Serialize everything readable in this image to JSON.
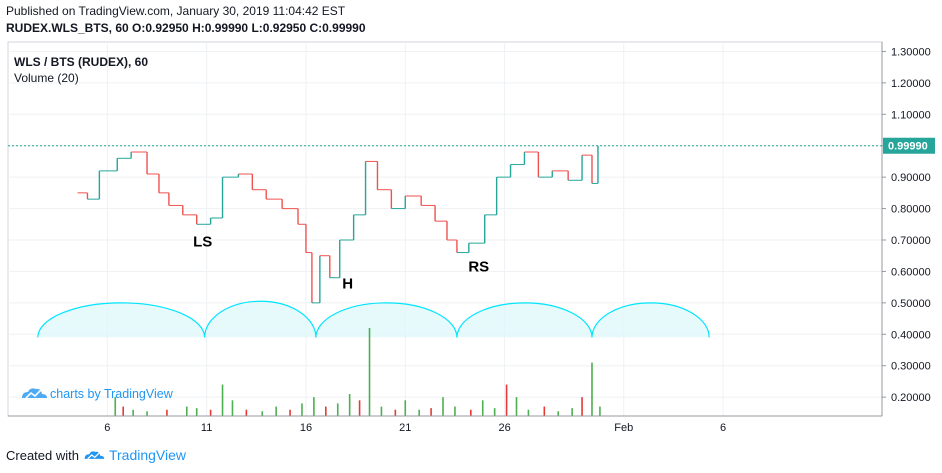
{
  "header": {
    "published": "Published on TradingView.com, January 30, 2019 11:04:42 EST",
    "ohlc": "RUDEX.WLS_BTS, 60 O:0.92950 H:0.99990 L:0.92950 C:0.99990"
  },
  "legend": {
    "symbol": "WLS / BTS (RUDEX), 60",
    "volume": "Volume (20)"
  },
  "watermark": "charts by TradingView",
  "footer": {
    "created": "Created with",
    "brand": "TradingView"
  },
  "colors": {
    "up": "#26a69a",
    "down": "#ef5350",
    "up_volume": "#4caf50",
    "down_volume": "#e53935",
    "last_price": "#26a69a",
    "arc_line": "#00e5ff",
    "arc_fill": "#e0f7fa",
    "grid": "#eef1f4",
    "watermark": "#2196f3"
  },
  "chart_data": {
    "type": "candlestick",
    "title": "WLS / BTS (RUDEX), 60",
    "x_tick_labels": [
      "6",
      "11",
      "16",
      "21",
      "26",
      "Feb",
      "6"
    ],
    "x_tick_days": [
      6,
      11,
      16,
      21,
      26,
      32,
      37
    ],
    "xlim_days": [
      1.0,
      45.0
    ],
    "ylim": [
      0.14,
      1.33
    ],
    "y_tick_labels": [
      "0.20000",
      "0.30000",
      "0.40000",
      "0.50000",
      "0.60000",
      "0.70000",
      "0.80000",
      "0.90000",
      "1.00000",
      "1.10000",
      "1.20000",
      "1.30000"
    ],
    "y_ticks": [
      0.2,
      0.3,
      0.4,
      0.5,
      0.6,
      0.7,
      0.8,
      0.9,
      1.0,
      1.1,
      1.2,
      1.3
    ],
    "last_price": 0.9999,
    "last_price_label": "0.99990",
    "grid": true,
    "price_series": [
      {
        "day": 4.5,
        "price": 0.85
      },
      {
        "day": 5.0,
        "price": 0.83
      },
      {
        "day": 5.6,
        "price": 0.92
      },
      {
        "day": 6.5,
        "price": 0.96
      },
      {
        "day": 7.2,
        "price": 0.98
      },
      {
        "day": 8.0,
        "price": 0.91
      },
      {
        "day": 8.6,
        "price": 0.85
      },
      {
        "day": 9.1,
        "price": 0.81
      },
      {
        "day": 9.8,
        "price": 0.78
      },
      {
        "day": 10.5,
        "price": 0.75
      },
      {
        "day": 11.2,
        "price": 0.77
      },
      {
        "day": 11.8,
        "price": 0.9
      },
      {
        "day": 12.6,
        "price": 0.91
      },
      {
        "day": 13.3,
        "price": 0.86
      },
      {
        "day": 14.0,
        "price": 0.83
      },
      {
        "day": 14.8,
        "price": 0.8
      },
      {
        "day": 15.6,
        "price": 0.75
      },
      {
        "day": 16.0,
        "price": 0.66
      },
      {
        "day": 16.3,
        "price": 0.5
      },
      {
        "day": 16.7,
        "price": 0.65
      },
      {
        "day": 17.2,
        "price": 0.58
      },
      {
        "day": 17.7,
        "price": 0.7
      },
      {
        "day": 18.4,
        "price": 0.78
      },
      {
        "day": 19.0,
        "price": 0.95
      },
      {
        "day": 19.6,
        "price": 0.86
      },
      {
        "day": 20.3,
        "price": 0.8
      },
      {
        "day": 21.0,
        "price": 0.84
      },
      {
        "day": 21.8,
        "price": 0.81
      },
      {
        "day": 22.5,
        "price": 0.76
      },
      {
        "day": 23.1,
        "price": 0.7
      },
      {
        "day": 23.6,
        "price": 0.66
      },
      {
        "day": 24.2,
        "price": 0.69
      },
      {
        "day": 25.0,
        "price": 0.78
      },
      {
        "day": 25.6,
        "price": 0.9
      },
      {
        "day": 26.3,
        "price": 0.94
      },
      {
        "day": 27.0,
        "price": 0.98
      },
      {
        "day": 27.7,
        "price": 0.9
      },
      {
        "day": 28.4,
        "price": 0.92
      },
      {
        "day": 29.2,
        "price": 0.89
      },
      {
        "day": 29.9,
        "price": 0.97
      },
      {
        "day": 30.4,
        "price": 0.88
      },
      {
        "day": 30.7,
        "price": 1.0
      }
    ],
    "volume": [
      {
        "day": 6.4,
        "v": 0.06
      },
      {
        "day": 6.8,
        "v": 0.03
      },
      {
        "day": 7.3,
        "v": 0.02
      },
      {
        "day": 8.0,
        "v": 0.015
      },
      {
        "day": 9.0,
        "v": 0.02
      },
      {
        "day": 10.0,
        "v": 0.03
      },
      {
        "day": 10.5,
        "v": 0.025
      },
      {
        "day": 11.2,
        "v": 0.02
      },
      {
        "day": 11.8,
        "v": 0.1
      },
      {
        "day": 12.3,
        "v": 0.05
      },
      {
        "day": 13.0,
        "v": 0.02
      },
      {
        "day": 13.8,
        "v": 0.015
      },
      {
        "day": 14.5,
        "v": 0.03
      },
      {
        "day": 15.2,
        "v": 0.02
      },
      {
        "day": 15.8,
        "v": 0.04
      },
      {
        "day": 16.4,
        "v": 0.06
      },
      {
        "day": 17.0,
        "v": 0.03
      },
      {
        "day": 17.6,
        "v": 0.04
      },
      {
        "day": 18.2,
        "v": 0.07
      },
      {
        "day": 18.7,
        "v": 0.05
      },
      {
        "day": 19.2,
        "v": 0.28
      },
      {
        "day": 19.8,
        "v": 0.03
      },
      {
        "day": 20.5,
        "v": 0.02
      },
      {
        "day": 21.0,
        "v": 0.05
      },
      {
        "day": 21.7,
        "v": 0.02
      },
      {
        "day": 22.3,
        "v": 0.025
      },
      {
        "day": 22.9,
        "v": 0.06
      },
      {
        "day": 23.5,
        "v": 0.03
      },
      {
        "day": 24.3,
        "v": 0.02
      },
      {
        "day": 24.9,
        "v": 0.05
      },
      {
        "day": 25.5,
        "v": 0.025
      },
      {
        "day": 26.1,
        "v": 0.1
      },
      {
        "day": 26.6,
        "v": 0.06
      },
      {
        "day": 27.2,
        "v": 0.02
      },
      {
        "day": 28.0,
        "v": 0.03
      },
      {
        "day": 28.7,
        "v": 0.015
      },
      {
        "day": 29.4,
        "v": 0.025
      },
      {
        "day": 29.9,
        "v": 0.06
      },
      {
        "day": 30.4,
        "v": 0.17
      },
      {
        "day": 30.8,
        "v": 0.03
      }
    ],
    "annotations": [
      {
        "text": "LS",
        "day": 10.8,
        "price": 0.68
      },
      {
        "text": "H",
        "day": 18.1,
        "price": 0.545
      },
      {
        "text": "RS",
        "day": 24.7,
        "price": 0.6
      }
    ],
    "arcs": [
      {
        "day_start": 2.5,
        "day_end": 10.9
      },
      {
        "day_start": 10.9,
        "day_end": 16.5
      },
      {
        "day_start": 16.5,
        "day_end": 23.6
      },
      {
        "day_start": 23.6,
        "day_end": 30.4
      },
      {
        "day_start": 30.4,
        "day_end": 36.3
      }
    ],
    "arc_base": 0.39,
    "arc_peaks": [
      0.5,
      0.505,
      0.5,
      0.5,
      0.5
    ]
  }
}
